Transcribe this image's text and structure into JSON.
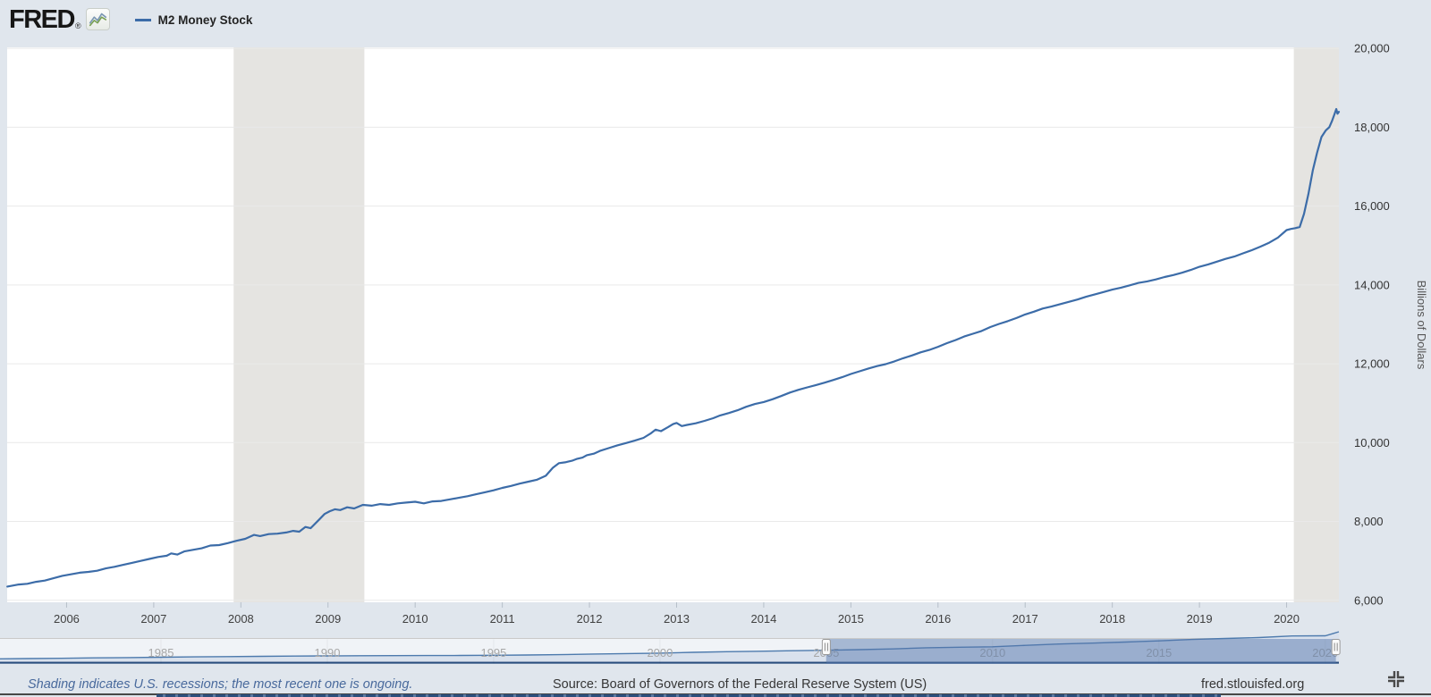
{
  "header": {
    "logo_text": "FRED",
    "logo_registered": "®",
    "legend_label": "M2 Money Stock"
  },
  "footer": {
    "recession_note": "Shading indicates U.S. recessions; the most recent one is ongoing.",
    "source": "Source: Board of Governors of the Federal Reserve System (US)",
    "site": "fred.stlouisfed.org"
  },
  "colors": {
    "background": "#e0e6ed",
    "plot_background": "#ffffff",
    "gridline": "#e9e9e9",
    "recession_band": "#e5e4e1",
    "series_line": "#3c6ca8",
    "axis_text": "#3f3f3f",
    "slider_label": "#a7a7a7",
    "slider_fill": "#d9e1ed",
    "slider_line": "#4d7aad",
    "slider_baseline": "#2a4e7e",
    "slider_selection": "rgba(86,120,172,0.48)",
    "note_link": "#48699c"
  },
  "chart_data": {
    "type": "line",
    "title": "M2 Money Stock",
    "ylabel": "Billions of Dollars",
    "xlabel": "",
    "legend_position": "top-left",
    "grid": "horizontal",
    "xlim": [
      2005.318,
      2020.6
    ],
    "ylim": [
      5950,
      20025
    ],
    "x_ticks": [
      2006,
      2007,
      2008,
      2009,
      2010,
      2011,
      2012,
      2013,
      2014,
      2015,
      2016,
      2017,
      2018,
      2019,
      2020
    ],
    "y_ticks": [
      [
        6000,
        "6,000"
      ],
      [
        8000,
        "8,000"
      ],
      [
        10000,
        "10,000"
      ],
      [
        12000,
        "12,000"
      ],
      [
        14000,
        "14,000"
      ],
      [
        16000,
        "16,000"
      ],
      [
        18000,
        "18,000"
      ],
      [
        20000,
        "20,000"
      ]
    ],
    "recessions": [
      [
        2007.917,
        2009.417
      ],
      [
        2020.083,
        2020.6
      ]
    ],
    "series": [
      {
        "name": "M2 Money Stock",
        "units": "Billions of Dollars",
        "points": [
          [
            2005.32,
            6350
          ],
          [
            2005.45,
            6400
          ],
          [
            2005.55,
            6420
          ],
          [
            2005.65,
            6470
          ],
          [
            2005.75,
            6500
          ],
          [
            2005.85,
            6560
          ],
          [
            2005.95,
            6620
          ],
          [
            2006.05,
            6660
          ],
          [
            2006.15,
            6700
          ],
          [
            2006.25,
            6720
          ],
          [
            2006.35,
            6750
          ],
          [
            2006.45,
            6810
          ],
          [
            2006.55,
            6850
          ],
          [
            2006.65,
            6900
          ],
          [
            2006.75,
            6950
          ],
          [
            2006.85,
            7000
          ],
          [
            2006.95,
            7050
          ],
          [
            2007.05,
            7100
          ],
          [
            2007.15,
            7130
          ],
          [
            2007.2,
            7190
          ],
          [
            2007.27,
            7160
          ],
          [
            2007.35,
            7240
          ],
          [
            2007.45,
            7280
          ],
          [
            2007.55,
            7320
          ],
          [
            2007.65,
            7390
          ],
          [
            2007.75,
            7400
          ],
          [
            2007.85,
            7450
          ],
          [
            2007.95,
            7510
          ],
          [
            2008.05,
            7560
          ],
          [
            2008.15,
            7660
          ],
          [
            2008.22,
            7630
          ],
          [
            2008.32,
            7680
          ],
          [
            2008.42,
            7690
          ],
          [
            2008.52,
            7720
          ],
          [
            2008.6,
            7760
          ],
          [
            2008.67,
            7740
          ],
          [
            2008.74,
            7860
          ],
          [
            2008.8,
            7830
          ],
          [
            2008.9,
            8050
          ],
          [
            2008.96,
            8190
          ],
          [
            2009.02,
            8260
          ],
          [
            2009.08,
            8310
          ],
          [
            2009.14,
            8290
          ],
          [
            2009.22,
            8360
          ],
          [
            2009.3,
            8330
          ],
          [
            2009.4,
            8420
          ],
          [
            2009.5,
            8400
          ],
          [
            2009.6,
            8440
          ],
          [
            2009.7,
            8420
          ],
          [
            2009.8,
            8460
          ],
          [
            2009.9,
            8480
          ],
          [
            2010.0,
            8500
          ],
          [
            2010.1,
            8460
          ],
          [
            2010.2,
            8510
          ],
          [
            2010.3,
            8520
          ],
          [
            2010.4,
            8560
          ],
          [
            2010.5,
            8600
          ],
          [
            2010.6,
            8640
          ],
          [
            2010.7,
            8690
          ],
          [
            2010.8,
            8740
          ],
          [
            2010.9,
            8790
          ],
          [
            2011.0,
            8850
          ],
          [
            2011.1,
            8900
          ],
          [
            2011.2,
            8960
          ],
          [
            2011.3,
            9010
          ],
          [
            2011.4,
            9060
          ],
          [
            2011.5,
            9160
          ],
          [
            2011.58,
            9360
          ],
          [
            2011.65,
            9480
          ],
          [
            2011.72,
            9500
          ],
          [
            2011.8,
            9540
          ],
          [
            2011.86,
            9590
          ],
          [
            2011.92,
            9620
          ],
          [
            2011.97,
            9680
          ],
          [
            2012.05,
            9720
          ],
          [
            2012.12,
            9790
          ],
          [
            2012.22,
            9860
          ],
          [
            2012.32,
            9930
          ],
          [
            2012.42,
            9990
          ],
          [
            2012.52,
            10050
          ],
          [
            2012.62,
            10120
          ],
          [
            2012.7,
            10230
          ],
          [
            2012.76,
            10330
          ],
          [
            2012.82,
            10290
          ],
          [
            2012.9,
            10390
          ],
          [
            2012.96,
            10470
          ],
          [
            2013.0,
            10500
          ],
          [
            2013.06,
            10420
          ],
          [
            2013.12,
            10450
          ],
          [
            2013.22,
            10490
          ],
          [
            2013.32,
            10550
          ],
          [
            2013.42,
            10620
          ],
          [
            2013.5,
            10690
          ],
          [
            2013.6,
            10750
          ],
          [
            2013.7,
            10820
          ],
          [
            2013.8,
            10910
          ],
          [
            2013.9,
            10980
          ],
          [
            2014.0,
            11030
          ],
          [
            2014.1,
            11100
          ],
          [
            2014.2,
            11180
          ],
          [
            2014.3,
            11270
          ],
          [
            2014.4,
            11340
          ],
          [
            2014.5,
            11400
          ],
          [
            2014.6,
            11460
          ],
          [
            2014.7,
            11520
          ],
          [
            2014.8,
            11590
          ],
          [
            2014.9,
            11660
          ],
          [
            2015.0,
            11740
          ],
          [
            2015.1,
            11810
          ],
          [
            2015.2,
            11880
          ],
          [
            2015.3,
            11940
          ],
          [
            2015.4,
            11990
          ],
          [
            2015.5,
            12060
          ],
          [
            2015.6,
            12140
          ],
          [
            2015.7,
            12210
          ],
          [
            2015.8,
            12290
          ],
          [
            2015.9,
            12350
          ],
          [
            2016.0,
            12430
          ],
          [
            2016.1,
            12520
          ],
          [
            2016.2,
            12600
          ],
          [
            2016.3,
            12690
          ],
          [
            2016.4,
            12760
          ],
          [
            2016.5,
            12830
          ],
          [
            2016.6,
            12930
          ],
          [
            2016.7,
            13010
          ],
          [
            2016.8,
            13080
          ],
          [
            2016.9,
            13160
          ],
          [
            2017.0,
            13250
          ],
          [
            2017.1,
            13320
          ],
          [
            2017.2,
            13400
          ],
          [
            2017.3,
            13450
          ],
          [
            2017.4,
            13510
          ],
          [
            2017.5,
            13570
          ],
          [
            2017.6,
            13630
          ],
          [
            2017.7,
            13700
          ],
          [
            2017.8,
            13760
          ],
          [
            2017.9,
            13820
          ],
          [
            2018.0,
            13880
          ],
          [
            2018.1,
            13930
          ],
          [
            2018.2,
            13990
          ],
          [
            2018.3,
            14050
          ],
          [
            2018.4,
            14090
          ],
          [
            2018.5,
            14140
          ],
          [
            2018.6,
            14200
          ],
          [
            2018.7,
            14250
          ],
          [
            2018.8,
            14310
          ],
          [
            2018.9,
            14380
          ],
          [
            2019.0,
            14460
          ],
          [
            2019.1,
            14520
          ],
          [
            2019.2,
            14590
          ],
          [
            2019.3,
            14660
          ],
          [
            2019.4,
            14720
          ],
          [
            2019.5,
            14800
          ],
          [
            2019.6,
            14880
          ],
          [
            2019.7,
            14970
          ],
          [
            2019.8,
            15070
          ],
          [
            2019.9,
            15200
          ],
          [
            2020.0,
            15390
          ],
          [
            2020.05,
            15420
          ],
          [
            2020.1,
            15440
          ],
          [
            2020.15,
            15470
          ],
          [
            2020.2,
            15800
          ],
          [
            2020.25,
            16300
          ],
          [
            2020.3,
            16900
          ],
          [
            2020.35,
            17350
          ],
          [
            2020.4,
            17750
          ],
          [
            2020.45,
            17920
          ],
          [
            2020.49,
            18000
          ],
          [
            2020.52,
            18150
          ],
          [
            2020.55,
            18330
          ],
          [
            2020.57,
            18460
          ],
          [
            2020.585,
            18340
          ],
          [
            2020.6,
            18390
          ]
        ]
      }
    ],
    "slider": {
      "xlim": [
        1980.16,
        2020.41
      ],
      "ylim": [
        0,
        18440
      ],
      "x_ticks": [
        1985,
        1990,
        1995,
        2000,
        2005,
        2010,
        2015,
        2020
      ],
      "selection": [
        2005.0,
        2020.32
      ],
      "points": [
        [
          1980.16,
          1480
        ],
        [
          1981,
          1640
        ],
        [
          1982,
          1800
        ],
        [
          1983,
          2060
        ],
        [
          1984,
          2220
        ],
        [
          1985,
          2420
        ],
        [
          1986,
          2660
        ],
        [
          1987,
          2830
        ],
        [
          1988,
          2990
        ],
        [
          1989,
          3160
        ],
        [
          1990,
          3280
        ],
        [
          1991,
          3380
        ],
        [
          1992,
          3430
        ],
        [
          1993,
          3480
        ],
        [
          1994,
          3500
        ],
        [
          1995,
          3640
        ],
        [
          1996,
          3820
        ],
        [
          1997,
          4040
        ],
        [
          1998,
          4380
        ],
        [
          1999,
          4640
        ],
        [
          2000,
          4920
        ],
        [
          2001,
          5430
        ],
        [
          2002,
          5780
        ],
        [
          2003,
          6070
        ],
        [
          2004,
          6420
        ],
        [
          2005,
          6680
        ],
        [
          2006,
          7070
        ],
        [
          2007,
          7470
        ],
        [
          2008,
          8190
        ],
        [
          2009,
          8490
        ],
        [
          2010,
          8800
        ],
        [
          2011,
          9660
        ],
        [
          2012,
          10450
        ],
        [
          2013,
          11020
        ],
        [
          2014,
          11680
        ],
        [
          2015,
          12340
        ],
        [
          2016,
          13210
        ],
        [
          2017,
          13850
        ],
        [
          2018,
          14370
        ],
        [
          2019,
          15330
        ],
        [
          2020,
          15470
        ],
        [
          2020.25,
          16900
        ],
        [
          2020.41,
          17900
        ]
      ]
    }
  }
}
